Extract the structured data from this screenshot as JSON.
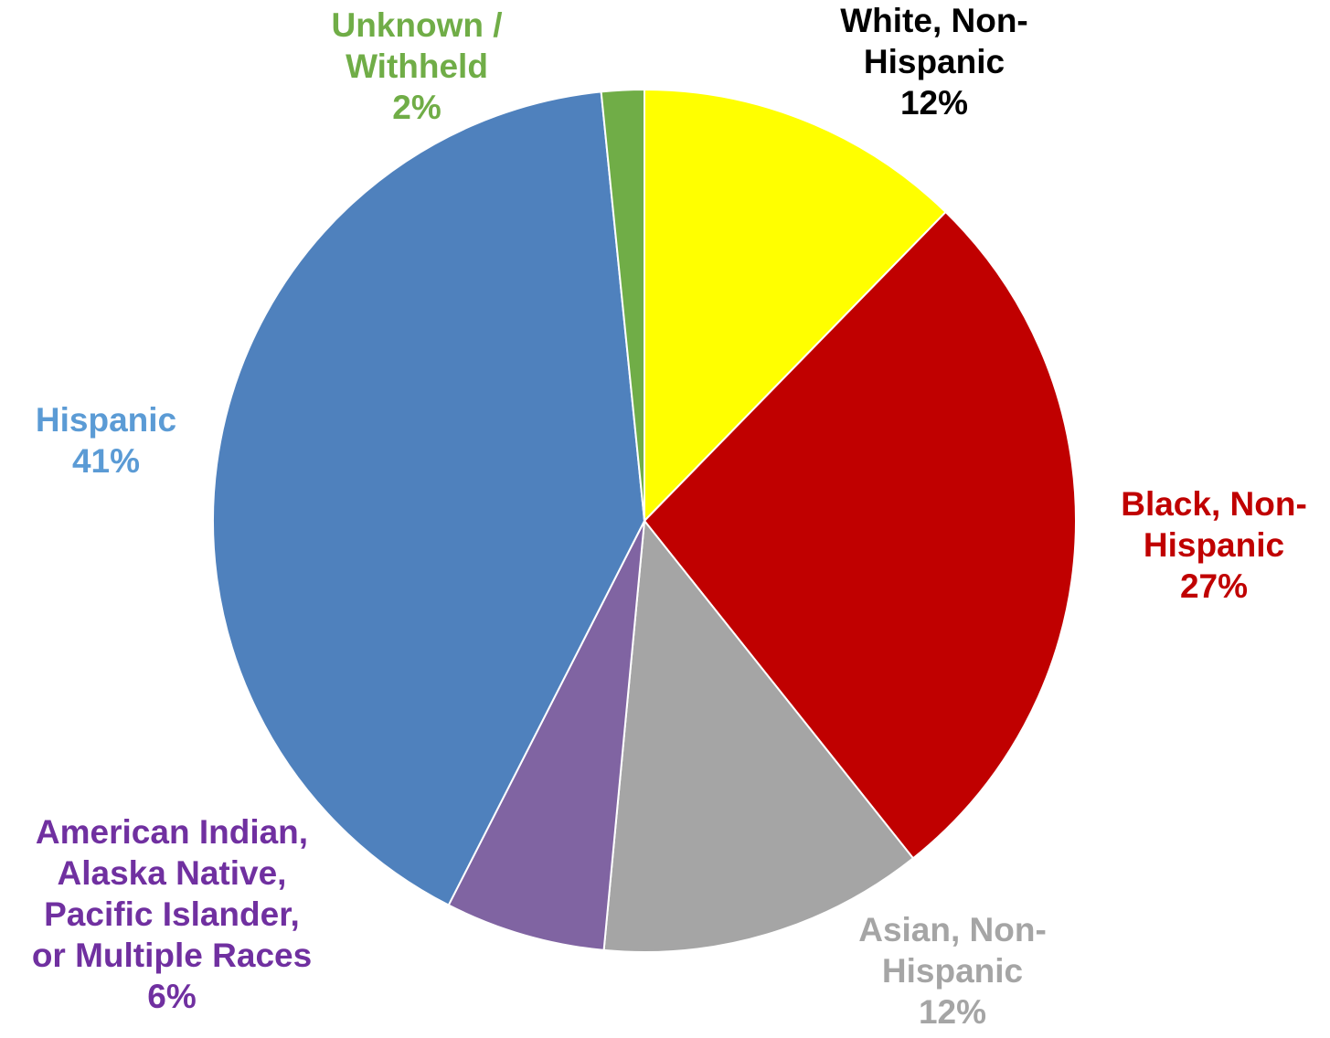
{
  "chart_data": {
    "type": "pie",
    "start_angle_deg": 0,
    "direction": "clockwise",
    "slices": [
      {
        "lines": [
          "White, Non-",
          "Hispanic"
        ],
        "pct_label": "12%",
        "value": 12.3,
        "color": "#FFFF00",
        "label_color": "#000000"
      },
      {
        "lines": [
          "Black, Non-",
          "Hispanic"
        ],
        "pct_label": "27%",
        "value": 27.0,
        "color": "#C00000",
        "label_color": "#C00000"
      },
      {
        "lines": [
          "Asian, Non-",
          "Hispanic"
        ],
        "pct_label": "12%",
        "value": 12.2,
        "color": "#A5A5A5",
        "label_color": "#A5A5A5"
      },
      {
        "lines": [
          "American Indian,",
          "Alaska Native,",
          "Pacific Islander,",
          "or Multiple Races"
        ],
        "pct_label": "6%",
        "value": 6.0,
        "color": "#8064A2",
        "label_color": "#7030A0"
      },
      {
        "lines": [
          "Hispanic"
        ],
        "pct_label": "41%",
        "value": 40.9,
        "color": "#4F81BD",
        "label_color": "#5B9BD5"
      },
      {
        "lines": [
          "Unknown /",
          "Withheld"
        ],
        "pct_label": "2%",
        "value": 1.6,
        "color": "#70AD47",
        "label_color": "#70AD47"
      }
    ]
  }
}
